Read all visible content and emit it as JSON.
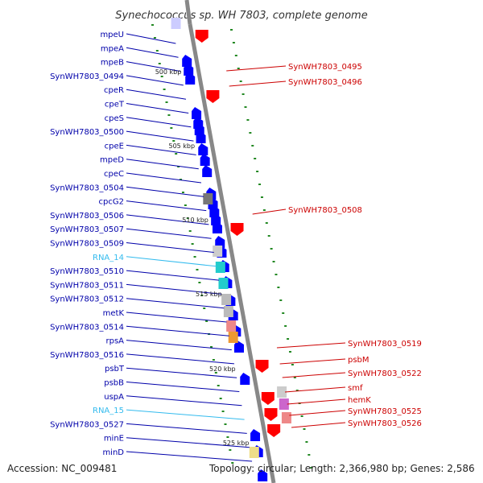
{
  "title": "Synechococcus sp. WH 7803, complete genome",
  "footer": {
    "accession": "Accession: NC_009481",
    "topology": "Topology: circular; Length: 2,366,980 bp; Genes: 2,586"
  },
  "colors": {
    "forward_gene": "#0000ff",
    "reverse_gene": "#ff0000",
    "forward_label": "#0000aa",
    "reverse_label": "#cc0000",
    "rna_label": "#33bbee",
    "backbone": "#888888",
    "tick": "#228822"
  },
  "scale_labels": [
    "500 kbp",
    "505 kbp",
    "510 kbp",
    "515 kbp",
    "520 kbp",
    "525 kbp"
  ],
  "left_labels": [
    {
      "text": "mpeU",
      "type": "forward"
    },
    {
      "text": "mpeA",
      "type": "forward"
    },
    {
      "text": "mpeB",
      "type": "forward"
    },
    {
      "text": "SynWH7803_0494",
      "type": "forward"
    },
    {
      "text": "cpeR",
      "type": "forward"
    },
    {
      "text": "cpeT",
      "type": "forward"
    },
    {
      "text": "cpeS",
      "type": "forward"
    },
    {
      "text": "SynWH7803_0500",
      "type": "forward"
    },
    {
      "text": "cpeE",
      "type": "forward"
    },
    {
      "text": "mpeD",
      "type": "forward"
    },
    {
      "text": "cpeC",
      "type": "forward"
    },
    {
      "text": "SynWH7803_0504",
      "type": "forward"
    },
    {
      "text": "cpcG2",
      "type": "forward"
    },
    {
      "text": "SynWH7803_0506",
      "type": "forward"
    },
    {
      "text": "SynWH7803_0507",
      "type": "forward"
    },
    {
      "text": "SynWH7803_0509",
      "type": "forward"
    },
    {
      "text": "RNA_14",
      "type": "rna"
    },
    {
      "text": "SynWH7803_0510",
      "type": "forward"
    },
    {
      "text": "SynWH7803_0511",
      "type": "forward"
    },
    {
      "text": "SynWH7803_0512",
      "type": "forward"
    },
    {
      "text": "metK",
      "type": "forward"
    },
    {
      "text": "SynWH7803_0514",
      "type": "forward"
    },
    {
      "text": "rpsA",
      "type": "forward"
    },
    {
      "text": "SynWH7803_0516",
      "type": "forward"
    },
    {
      "text": "psbT",
      "type": "forward"
    },
    {
      "text": "psbB",
      "type": "forward"
    },
    {
      "text": "uspA",
      "type": "forward"
    },
    {
      "text": "RNA_15",
      "type": "rna"
    },
    {
      "text": "SynWH7803_0527",
      "type": "forward"
    },
    {
      "text": "minE",
      "type": "forward"
    },
    {
      "text": "minD",
      "type": "forward"
    }
  ],
  "right_labels": [
    {
      "text": "SynWH7803_0495",
      "type": "reverse"
    },
    {
      "text": "SynWH7803_0496",
      "type": "reverse"
    },
    {
      "text": "SynWH7803_0508",
      "type": "reverse"
    },
    {
      "text": "SynWH7803_0519",
      "type": "reverse"
    },
    {
      "text": "psbM",
      "type": "reverse"
    },
    {
      "text": "SynWH7803_0522",
      "type": "reverse"
    },
    {
      "text": "smf",
      "type": "reverse"
    },
    {
      "text": "hemK",
      "type": "reverse"
    },
    {
      "text": "SynWH7803_0525",
      "type": "reverse"
    },
    {
      "text": "SynWH7803_0526",
      "type": "reverse"
    }
  ]
}
